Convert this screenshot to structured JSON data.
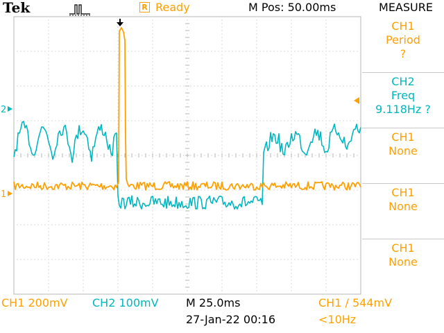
{
  "header": {
    "brand": "Tek",
    "trigger_state_icon": "trigger-pulse-icon",
    "status_indicator": "R",
    "status": "Ready",
    "position": "M Pos: 50.00ms"
  },
  "measure_panel": {
    "title": "MEASURE",
    "items": [
      {
        "channel": "CH1",
        "measurement": "Period",
        "value": "?"
      },
      {
        "channel": "CH2",
        "measurement": "Freq",
        "value": "9.118Hz ?"
      },
      {
        "channel": "CH1",
        "measurement": "None",
        "value": ""
      },
      {
        "channel": "CH1",
        "measurement": "None",
        "value": ""
      },
      {
        "channel": "CH1",
        "measurement": "None",
        "value": ""
      }
    ]
  },
  "markers": {
    "ch2": "2",
    "ch1": "1"
  },
  "footer": {
    "ch1_scale": "CH1  200mV",
    "ch2_scale": "CH2  100mV",
    "timebase": "M 25.0ms",
    "date": "27-Jan-22 00:16",
    "trigger": "CH1  ∕  544mV",
    "trigger_freq": "<10Hz"
  },
  "colors": {
    "ch1": "#ffa000",
    "ch2": "#00b7c0",
    "graticule": "#b4b4b4"
  }
}
